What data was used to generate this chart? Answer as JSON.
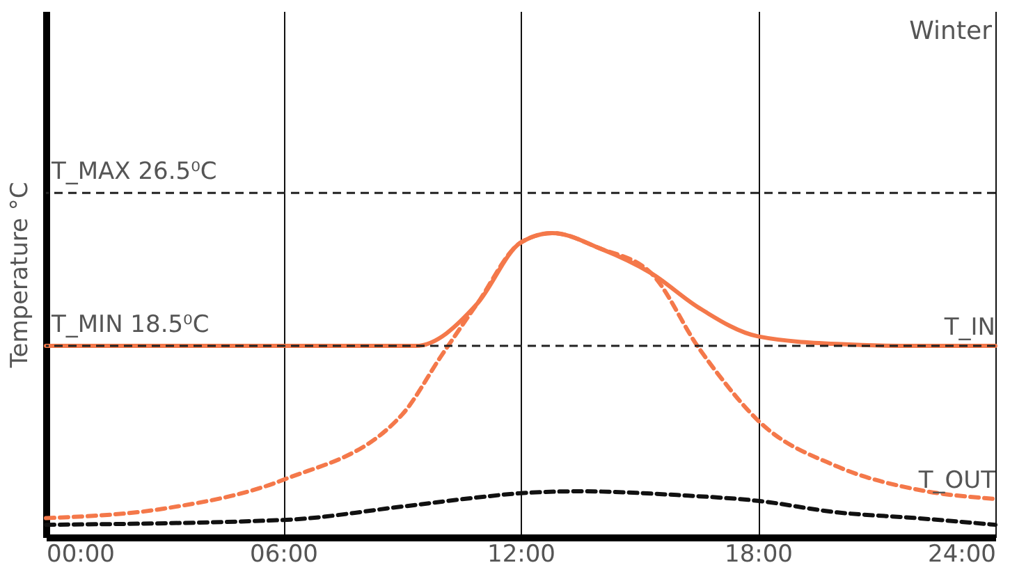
{
  "chart_data": {
    "type": "line",
    "title": "Winter",
    "ylabel": "Temperature °C",
    "xlim": [
      0,
      24
    ],
    "xticks": [
      {
        "value": 0,
        "label": "00:00"
      },
      {
        "value": 6,
        "label": "06:00"
      },
      {
        "value": 12,
        "label": "12:00"
      },
      {
        "value": 18,
        "label": "18:00"
      },
      {
        "value": 24,
        "label": "24:00"
      }
    ],
    "ylim": [
      8.5,
      36
    ],
    "grid": "x",
    "tick_labels": "x",
    "ref_lines": [
      {
        "axis": "y",
        "value": 26.5,
        "label": "T_MAX 26.5⁰C",
        "color": "#222222",
        "line_style": "dashed"
      },
      {
        "axis": "y",
        "value": 18.5,
        "label": "T_MIN 18.5⁰C",
        "color": "#222222",
        "line_style": "dashed"
      }
    ],
    "series": [
      {
        "name": "T_OUT",
        "color": "#f4784a",
        "line_style": "dashed",
        "x": [
          0,
          3,
          6,
          9,
          10,
          10.9,
          12,
          12.8,
          14,
          15.3,
          16.5,
          17,
          18,
          20,
          22,
          24
        ],
        "values": [
          9.5,
          10.0,
          11.5,
          14.9,
          18.0,
          20.7,
          23.9,
          24.4,
          23.6,
          22.3,
          18.4,
          17.0,
          14.6,
          12.2,
          11.0,
          10.5
        ]
      },
      {
        "color": "#111111",
        "line_style": "dashed",
        "x": [
          0,
          6,
          9,
          11,
          12,
          13.5,
          16,
          18,
          20,
          22,
          24
        ],
        "values": [
          9.15,
          9.4,
          10.1,
          10.6,
          10.8,
          10.9,
          10.7,
          10.4,
          9.8,
          9.5,
          9.15
        ]
      },
      {
        "name": "T_IN",
        "color": "#f4784a",
        "line_style": "solid",
        "x": [
          0,
          6,
          9.35,
          10.9,
          12,
          12.8,
          14,
          15.3,
          16.5,
          18,
          20,
          22,
          24
        ],
        "values": [
          18.5,
          18.5,
          18.5,
          20.7,
          23.9,
          24.4,
          23.6,
          22.3,
          20.5,
          19.0,
          18.6,
          18.5,
          18.5
        ]
      }
    ]
  }
}
